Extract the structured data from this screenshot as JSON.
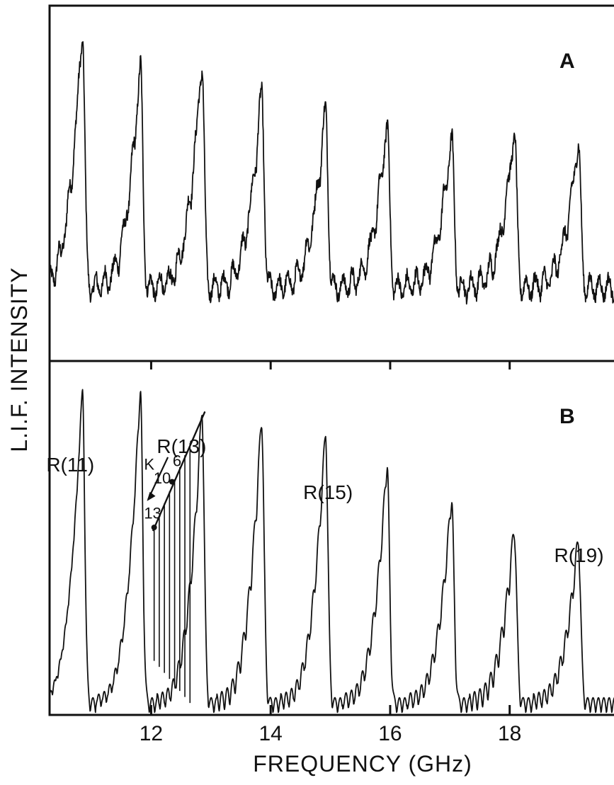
{
  "chart_data": {
    "type": "line",
    "xlabel": "FREQUENCY    (GHz)",
    "ylabel": "L.I.F.  INTENSITY",
    "xlim": [
      10.3,
      19.9
    ],
    "x_ticks": [
      12,
      14,
      16,
      18
    ],
    "x_tick_labels": [
      "12",
      "14",
      "16",
      "18"
    ],
    "grid": false,
    "panels": [
      {
        "id": "A",
        "label": "A",
        "trace": "experimental LIF spectrum (noisy)",
        "peaks": [
          {
            "x": 10.85,
            "y": 0.93
          },
          {
            "x": 11.82,
            "y": 0.83
          },
          {
            "x": 12.85,
            "y": 0.84
          },
          {
            "x": 13.85,
            "y": 0.75
          },
          {
            "x": 14.92,
            "y": 0.7
          },
          {
            "x": 15.95,
            "y": 0.66
          },
          {
            "x": 17.03,
            "y": 0.62
          },
          {
            "x": 18.08,
            "y": 0.64
          },
          {
            "x": 19.15,
            "y": 0.61
          }
        ]
      },
      {
        "id": "B",
        "label": "B",
        "trace": "simulated spectrum",
        "peaks": [
          {
            "x": 10.85,
            "y": 0.88
          },
          {
            "x": 11.82,
            "y": 0.88
          },
          {
            "x": 12.85,
            "y": 0.82
          },
          {
            "x": 13.85,
            "y": 0.8
          },
          {
            "x": 14.92,
            "y": 0.76
          },
          {
            "x": 15.95,
            "y": 0.67
          },
          {
            "x": 17.03,
            "y": 0.57
          },
          {
            "x": 18.08,
            "y": 0.48
          },
          {
            "x": 19.15,
            "y": 0.45
          }
        ],
        "annotations": [
          {
            "text": "R(11)",
            "x": 10.6
          },
          {
            "text": "R(13)",
            "x": 12.45
          },
          {
            "text": "R(15)",
            "x": 14.9
          },
          {
            "text": "R(19)",
            "x": 19.1
          }
        ],
        "k_structure": {
          "axis_label": "K",
          "labels": [
            "6",
            "10",
            "13"
          ],
          "k_from": 13,
          "k_to": 6,
          "x_from": 12.05,
          "x_to": 12.65,
          "y_from": 0.53,
          "y_to": 0.77
        }
      }
    ]
  }
}
